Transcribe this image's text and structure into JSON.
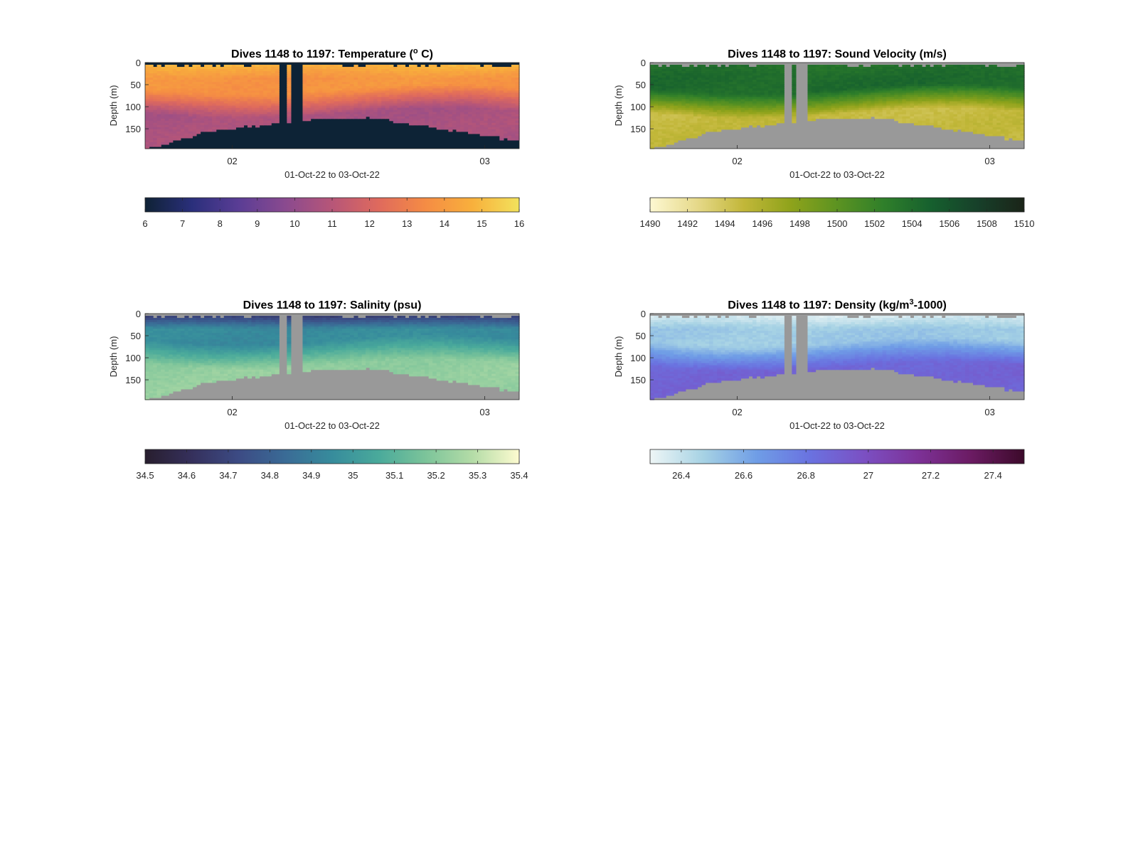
{
  "figure": {
    "background": "#ffffff",
    "land_color": "#999999",
    "temp_mask_color": "#0d2336"
  },
  "chart_data": [
    {
      "id": "temperature",
      "type": "heatmap",
      "title": "Dives 1148 to 1197: Temperature (",
      "title_sup": "o",
      "title_tail": " C)",
      "xlabel": "01-Oct-22 to 03-Oct-22",
      "ylabel": "Depth (m)",
      "xticks": [
        "02",
        "03"
      ],
      "yticks": [
        "0",
        "50",
        "100",
        "150"
      ],
      "ylim": [
        0,
        195
      ],
      "grid": false,
      "colorbar": {
        "min": 6,
        "max": 16,
        "ticks": [
          "6",
          "7",
          "8",
          "9",
          "10",
          "11",
          "12",
          "13",
          "14",
          "15",
          "16"
        ],
        "colors": [
          "#0f2235",
          "#2a2f7b",
          "#5a3d95",
          "#8a4a8f",
          "#b75678",
          "#df6a5d",
          "#f58c44",
          "#f8b03c",
          "#f2e25c"
        ]
      },
      "profile": {
        "surface": 15.0,
        "mid": 13.8,
        "thermocline_depth": 60,
        "deep": 10.6
      },
      "mask_color": "#0d2336"
    },
    {
      "id": "sound_velocity",
      "type": "heatmap",
      "title": "Dives 1148 to 1197: Sound Velocity (m/s)",
      "xlabel": "01-Oct-22 to 03-Oct-22",
      "ylabel": "Depth (m)",
      "xticks": [
        "02",
        "03"
      ],
      "yticks": [
        "0",
        "50",
        "100",
        "150"
      ],
      "ylim": [
        0,
        195
      ],
      "grid": false,
      "colorbar": {
        "min": 1490,
        "max": 1510,
        "ticks": [
          "1490",
          "1492",
          "1494",
          "1496",
          "1498",
          "1500",
          "1502",
          "1504",
          "1506",
          "1508",
          "1510"
        ],
        "colors": [
          "#fdf8d2",
          "#e6d98a",
          "#c2b739",
          "#8fa31b",
          "#5c9321",
          "#2f7f2a",
          "#16602e",
          "#17402a",
          "#1b2418"
        ]
      },
      "profile": {
        "surface": 1503.5,
        "mid": 1504.2,
        "thermocline_depth": 60,
        "deep": 1494.8
      },
      "mask_color": "#999999"
    },
    {
      "id": "salinity",
      "type": "heatmap",
      "title": "Dives 1148 to 1197: Salinity (psu)",
      "xlabel": "01-Oct-22 to 03-Oct-22",
      "ylabel": "Depth (m)",
      "xticks": [
        "02",
        "03"
      ],
      "yticks": [
        "0",
        "50",
        "100",
        "150"
      ],
      "ylim": [
        0,
        195
      ],
      "grid": false,
      "colorbar": {
        "min": 34.5,
        "max": 35.4,
        "ticks": [
          "34.5",
          "34.6",
          "34.7",
          "34.8",
          "34.9",
          "35",
          "35.1",
          "35.2",
          "35.3",
          "35.4"
        ],
        "colors": [
          "#281e2e",
          "#35305c",
          "#3c4b84",
          "#3a6b96",
          "#378c9c",
          "#4aaa9b",
          "#7cc49a",
          "#b4dca7",
          "#fdfbd0"
        ]
      },
      "profile": {
        "surface": 34.62,
        "mid": 34.95,
        "thermocline_depth": 60,
        "deep": 35.22
      },
      "mask_color": "#999999"
    },
    {
      "id": "density",
      "type": "heatmap",
      "title": "Dives 1148 to 1197: Density (kg/m",
      "title_sup": "3",
      "title_tail": "-1000)",
      "xlabel": "01-Oct-22 to 03-Oct-22",
      "ylabel": "Depth (m)",
      "xticks": [
        "02",
        "03"
      ],
      "yticks": [
        "0",
        "50",
        "100",
        "150"
      ],
      "ylim": [
        0,
        195
      ],
      "grid": false,
      "colorbar": {
        "min": 26.3,
        "max": 27.5,
        "ticks": [
          "26.4",
          "26.6",
          "26.8",
          "27",
          "27.2",
          "27.4"
        ],
        "colors": [
          "#eef6f6",
          "#a6d2e4",
          "#6f9de6",
          "#6a72e0",
          "#7b50c3",
          "#7d3298",
          "#6b1b63",
          "#3c0a2a"
        ]
      },
      "profile": {
        "surface": 26.32,
        "mid": 26.5,
        "thermocline_depth": 65,
        "deep": 26.88
      },
      "mask_color": "#999999"
    }
  ]
}
